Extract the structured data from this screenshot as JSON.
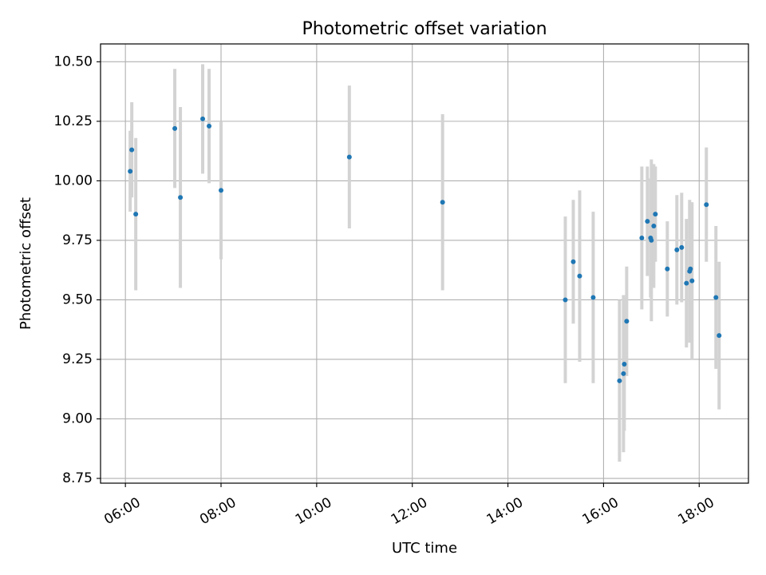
{
  "chart_data": {
    "type": "scatter",
    "title": "Photometric offset variation",
    "xlabel": "UTC time",
    "ylabel": "Photometric offset",
    "x_unit": "UTC hour of day",
    "xlim": [
      5.48,
      19.03
    ],
    "ylim": [
      8.73,
      10.575
    ],
    "x_ticks": [
      {
        "value": 6,
        "label": "06:00"
      },
      {
        "value": 8,
        "label": "08:00"
      },
      {
        "value": 10,
        "label": "10:00"
      },
      {
        "value": 12,
        "label": "12:00"
      },
      {
        "value": 14,
        "label": "14:00"
      },
      {
        "value": 16,
        "label": "16:00"
      },
      {
        "value": 18,
        "label": "18:00"
      }
    ],
    "y_ticks": [
      {
        "value": 8.75,
        "label": "8.75"
      },
      {
        "value": 9.0,
        "label": "9.00"
      },
      {
        "value": 9.25,
        "label": "9.25"
      },
      {
        "value": 9.5,
        "label": "9.50"
      },
      {
        "value": 9.75,
        "label": "9.75"
      },
      {
        "value": 10.0,
        "label": "10.00"
      },
      {
        "value": 10.25,
        "label": "10.25"
      },
      {
        "value": 10.5,
        "label": "10.50"
      }
    ],
    "grid": true,
    "marker_color": "#1f77b4",
    "errorbar_color": "#d3d3d3",
    "points": [
      {
        "x": "06:06",
        "y": 10.04,
        "err": 0.17
      },
      {
        "x": "06:08",
        "y": 10.13,
        "err": 0.2
      },
      {
        "x": "06:13",
        "y": 9.86,
        "err": 0.32
      },
      {
        "x": "07:02",
        "y": 10.22,
        "err": 0.25
      },
      {
        "x": "07:09",
        "y": 9.93,
        "err": 0.38
      },
      {
        "x": "07:37",
        "y": 10.26,
        "err": 0.23
      },
      {
        "x": "07:45",
        "y": 10.23,
        "err": 0.24
      },
      {
        "x": "08:00",
        "y": 9.96,
        "err": 0.29
      },
      {
        "x": "10:41",
        "y": 10.1,
        "err": 0.3
      },
      {
        "x": "12:38",
        "y": 9.91,
        "err": 0.37
      },
      {
        "x": "15:12",
        "y": 9.5,
        "err": 0.35
      },
      {
        "x": "15:22",
        "y": 9.66,
        "err": 0.26
      },
      {
        "x": "15:30",
        "y": 9.6,
        "err": 0.36
      },
      {
        "x": "15:47",
        "y": 9.51,
        "err": 0.36
      },
      {
        "x": "16:20",
        "y": 9.16,
        "err": 0.34
      },
      {
        "x": "16:25",
        "y": 9.19,
        "err": 0.33
      },
      {
        "x": "16:26",
        "y": 9.23,
        "err": 0.28
      },
      {
        "x": "16:29",
        "y": 9.41,
        "err": 0.23
      },
      {
        "x": "16:48",
        "y": 9.76,
        "err": 0.3
      },
      {
        "x": "16:55",
        "y": 9.83,
        "err": 0.23
      },
      {
        "x": "16:59",
        "y": 9.76,
        "err": 0.25
      },
      {
        "x": "17:00",
        "y": 9.75,
        "err": 0.34
      },
      {
        "x": "17:03",
        "y": 9.81,
        "err": 0.26
      },
      {
        "x": "17:05",
        "y": 9.86,
        "err": 0.2
      },
      {
        "x": "17:20",
        "y": 9.63,
        "err": 0.2
      },
      {
        "x": "17:32",
        "y": 9.71,
        "err": 0.23
      },
      {
        "x": "17:38",
        "y": 9.72,
        "err": 0.23
      },
      {
        "x": "17:44",
        "y": 9.57,
        "err": 0.27
      },
      {
        "x": "17:48",
        "y": 9.62,
        "err": 0.3
      },
      {
        "x": "17:49",
        "y": 9.63,
        "err": 0.28
      },
      {
        "x": "17:51",
        "y": 9.58,
        "err": 0.33
      },
      {
        "x": "18:09",
        "y": 9.9,
        "err": 0.24
      },
      {
        "x": "18:21",
        "y": 9.51,
        "err": 0.3
      },
      {
        "x": "18:25",
        "y": 9.35,
        "err": 0.31
      }
    ]
  }
}
